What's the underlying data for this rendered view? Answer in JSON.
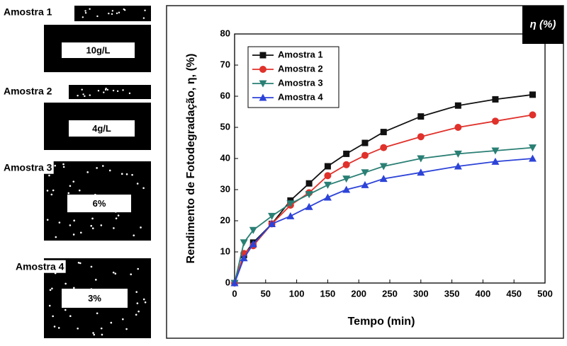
{
  "samples": [
    {
      "label": "Amostra 1",
      "text": "10g/L"
    },
    {
      "label": "Amostra 2",
      "text": "4g/L"
    },
    {
      "label": "Amostra 3",
      "text": "6%"
    },
    {
      "label": "Amostra 4",
      "text": "3%"
    }
  ],
  "chart_data": {
    "type": "line",
    "badge": "η (%)",
    "x_label": "Tempo (min)",
    "y_label": "Rendimento de Fotodegradação, η, (%)",
    "x": [
      0,
      15,
      30,
      60,
      90,
      120,
      150,
      180,
      210,
      240,
      300,
      360,
      420,
      480
    ],
    "series": [
      {
        "name": "Amostra 1",
        "color": "#111111",
        "marker": "square",
        "values": [
          0,
          9,
          13,
          19,
          26.5,
          32,
          37.5,
          41.5,
          45,
          48.5,
          53.5,
          57,
          59,
          60.5
        ]
      },
      {
        "name": "Amostra 2",
        "color": "#e0312b",
        "marker": "circle",
        "values": [
          0,
          9.5,
          12,
          19,
          25,
          29,
          34.5,
          38,
          41,
          43.5,
          47,
          50,
          52,
          54
        ]
      },
      {
        "name": "Amostra 3",
        "color": "#2a7f74",
        "marker": "triangle-down",
        "values": [
          0,
          13,
          17,
          21.5,
          25.5,
          28.5,
          31.5,
          33.5,
          35.5,
          37.5,
          40,
          41.5,
          42.5,
          43.5
        ]
      },
      {
        "name": "Amostra 4",
        "color": "#2d43d8",
        "marker": "triangle-up",
        "values": [
          0,
          8,
          12.5,
          19,
          21.5,
          24.5,
          27.5,
          30,
          31.5,
          33.5,
          35.5,
          37.5,
          39,
          40
        ]
      }
    ],
    "xlim": [
      0,
      500
    ],
    "xticks": [
      0,
      50,
      100,
      150,
      200,
      250,
      300,
      350,
      400,
      450,
      500
    ],
    "ylim": [
      0,
      80
    ],
    "yticks": [
      0,
      10,
      20,
      30,
      40,
      50,
      60,
      70,
      80
    ]
  }
}
